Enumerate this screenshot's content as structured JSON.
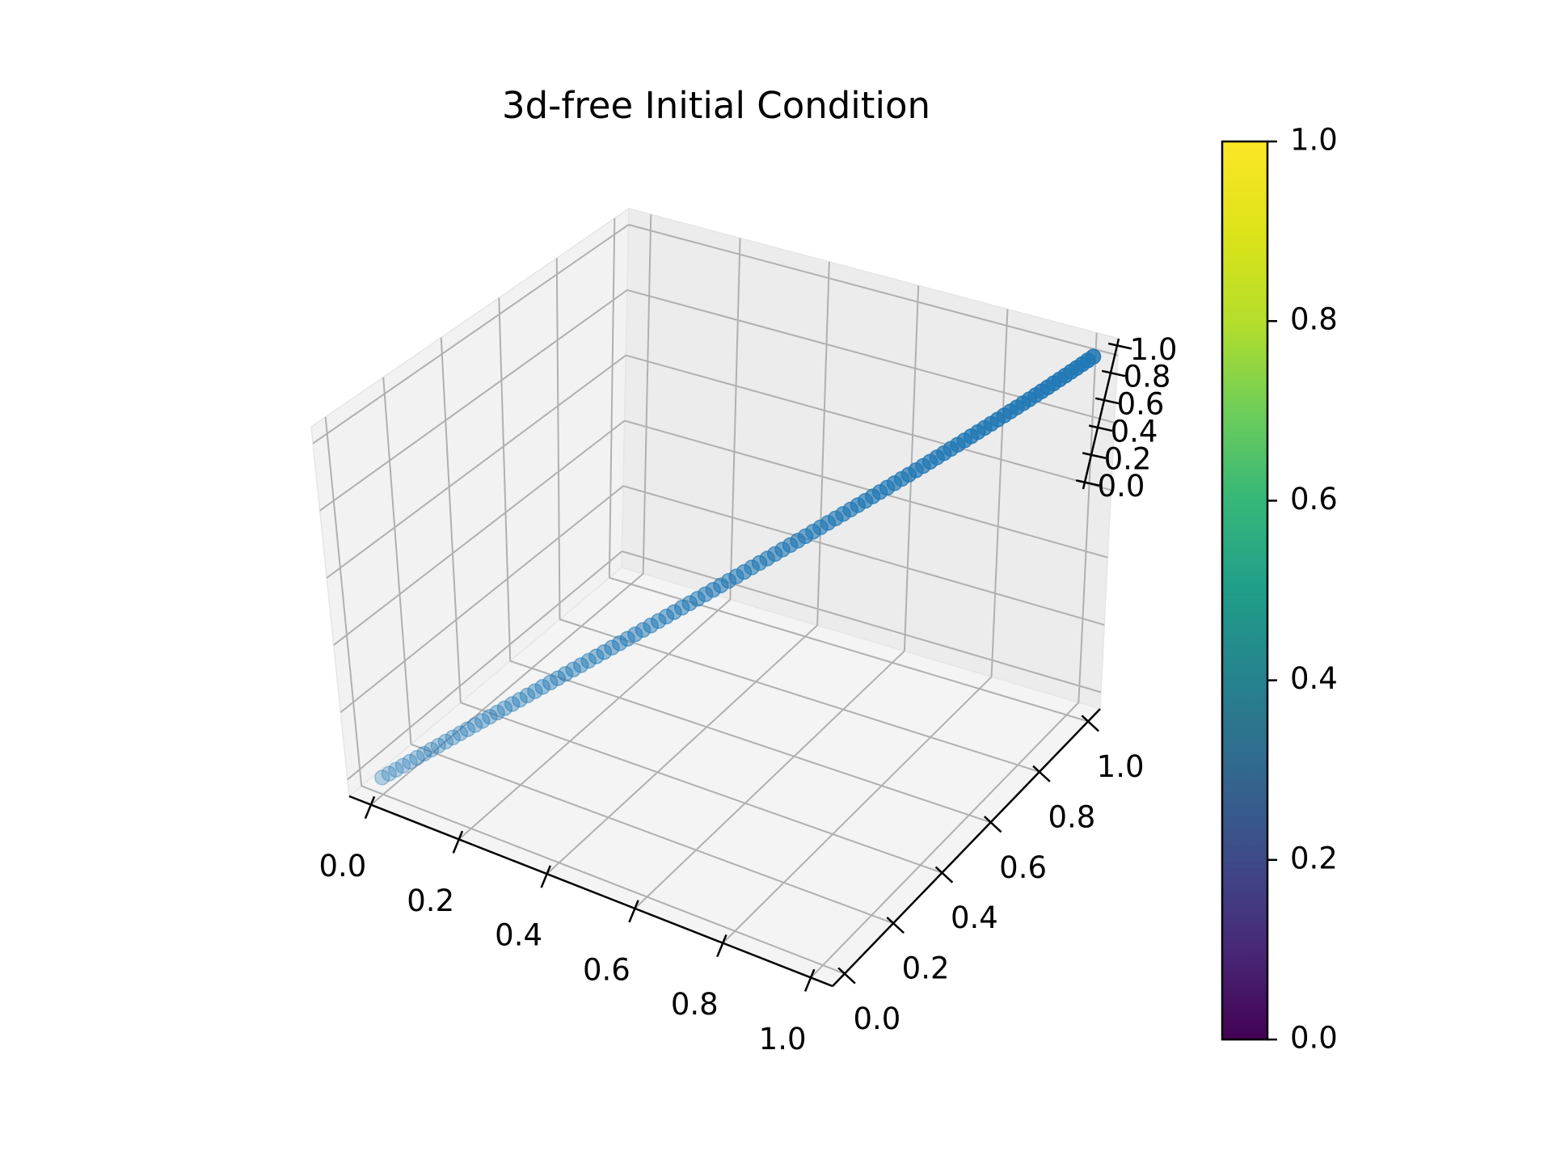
{
  "chart_data": {
    "type": "scatter",
    "projection": "3d",
    "title": "3d-free Initial Condition",
    "xlabel": "",
    "ylabel": "",
    "zlabel": "",
    "xlim": [
      0.0,
      1.0
    ],
    "ylim": [
      0.0,
      1.0
    ],
    "zlim": [
      0.0,
      1.0
    ],
    "x_ticks": [
      "0.0",
      "0.2",
      "0.4",
      "0.6",
      "0.8",
      "1.0"
    ],
    "y_ticks": [
      "0.0",
      "0.2",
      "0.4",
      "0.6",
      "0.8",
      "1.0"
    ],
    "z_ticks": [
      "0.0",
      "0.2",
      "0.4",
      "0.6",
      "0.8",
      "1.0"
    ],
    "grid": true,
    "point_count": 100,
    "points": "x = y = z, evenly spaced from 0.0 to 1.0",
    "point_color": "#1f77b4",
    "colorbar": {
      "colormap": "viridis",
      "range": [
        0.0,
        1.0
      ],
      "ticks": [
        "0.0",
        "0.2",
        "0.4",
        "0.6",
        "0.8",
        "1.0"
      ]
    }
  }
}
